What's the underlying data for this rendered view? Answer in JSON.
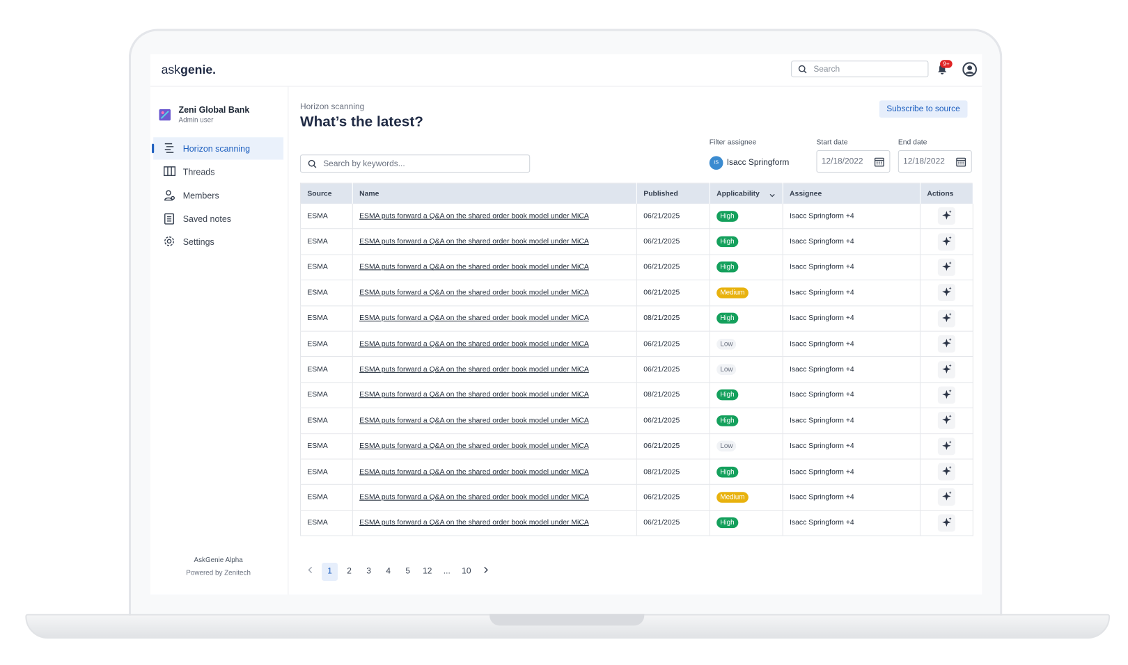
{
  "header": {
    "logo_light": "ask",
    "logo_bold": "genie.",
    "search_placeholder": "Search",
    "notification_badge": "9+"
  },
  "sidebar": {
    "org_name": "Zeni Global Bank",
    "role": "Admin user",
    "nav": [
      "Horizon scanning",
      "Threads",
      "Members",
      "Saved notes",
      "Settings"
    ],
    "footer_title": "AskGenie Alpha",
    "footer_subtitle": "Powered by Zenitech"
  },
  "main": {
    "breadcrumb": "Horizon scanning",
    "title": "What’s the latest?",
    "subscribe_button": "Subscribe to source",
    "keyword_placeholder": "Search by keywords...",
    "filter_assignee_label": "Filter assignee",
    "assignee_initials": "IS",
    "assignee_name": "Isacc Springform",
    "start_date_label": "Start date",
    "start_date": "12/18/2022",
    "end_date_label": "End date",
    "end_date": "12/18/2022"
  },
  "table": {
    "headers": [
      "Source",
      "Name",
      "Published",
      "Applicability",
      "Assignee",
      "Actions"
    ],
    "rows": [
      {
        "source": "ESMA",
        "name": "ESMA puts forward a Q&A on the shared order book model under MiCA",
        "published": "06/21/2025",
        "applicability": {
          "text": "High",
          "fill": "#14a05c",
          "ink": "#ffffff"
        },
        "assignee": "Isacc Springform +4"
      },
      {
        "source": "ESMA",
        "name": "ESMA puts forward a Q&A on the shared order book model under MiCA",
        "published": "06/21/2025",
        "applicability": {
          "text": "High",
          "fill": "#14a05c",
          "ink": "#ffffff"
        },
        "assignee": "Isacc Springform +4"
      },
      {
        "source": "ESMA",
        "name": "ESMA puts forward a Q&A on the shared order book model under MiCA",
        "published": "06/21/2025",
        "applicability": {
          "text": "High",
          "fill": "#14a05c",
          "ink": "#ffffff"
        },
        "assignee": "Isacc Springform +4"
      },
      {
        "source": "ESMA",
        "name": "ESMA puts forward a Q&A on the shared order book model under MiCA",
        "published": "06/21/2025",
        "applicability": {
          "text": "Medium",
          "fill": "#e8b20e",
          "ink": "#ffffff"
        },
        "assignee": "Isacc Springform +4"
      },
      {
        "source": "ESMA",
        "name": "ESMA puts forward a Q&A on the shared order book model under MiCA",
        "published": "08/21/2025",
        "applicability": {
          "text": "High",
          "fill": "#14a05c",
          "ink": "#ffffff"
        },
        "assignee": "Isacc Springform +4"
      },
      {
        "source": "ESMA",
        "name": "ESMA puts forward a Q&A on the shared order book model under MiCA",
        "published": "06/21/2025",
        "applicability": {
          "text": "Low",
          "fill": "#f1f3f6",
          "ink": "#6b7280"
        },
        "assignee": "Isacc Springform +4"
      },
      {
        "source": "ESMA",
        "name": "ESMA puts forward a Q&A on the shared order book model under MiCA",
        "published": "06/21/2025",
        "applicability": {
          "text": "Low",
          "fill": "#f1f3f6",
          "ink": "#6b7280"
        },
        "assignee": "Isacc Springform +4"
      },
      {
        "source": "ESMA",
        "name": "ESMA puts forward a Q&A on the shared order book model under MiCA",
        "published": "08/21/2025",
        "applicability": {
          "text": "High",
          "fill": "#14a05c",
          "ink": "#ffffff"
        },
        "assignee": "Isacc Springform +4"
      },
      {
        "source": "ESMA",
        "name": "ESMA puts forward a Q&A on the shared order book model under MiCA",
        "published": "06/21/2025",
        "applicability": {
          "text": "High",
          "fill": "#14a05c",
          "ink": "#ffffff"
        },
        "assignee": "Isacc Springform +4"
      },
      {
        "source": "ESMA",
        "name": "ESMA puts forward a Q&A on the shared order book model under MiCA",
        "published": "06/21/2025",
        "applicability": {
          "text": "Low",
          "fill": "#f1f3f6",
          "ink": "#6b7280"
        },
        "assignee": "Isacc Springform +4"
      },
      {
        "source": "ESMA",
        "name": "ESMA puts forward a Q&A on the shared order book model under MiCA",
        "published": "08/21/2025",
        "applicability": {
          "text": "High",
          "fill": "#14a05c",
          "ink": "#ffffff"
        },
        "assignee": "Isacc Springform +4"
      },
      {
        "source": "ESMA",
        "name": "ESMA puts forward a Q&A on the shared order book model under MiCA",
        "published": "06/21/2025",
        "applicability": {
          "text": "Medium",
          "fill": "#e8b20e",
          "ink": "#ffffff"
        },
        "assignee": "Isacc Springform +4"
      },
      {
        "source": "ESMA",
        "name": "ESMA puts forward a Q&A on the shared order book model under MiCA",
        "published": "06/21/2025",
        "applicability": {
          "text": "High",
          "fill": "#14a05c",
          "ink": "#ffffff"
        },
        "assignee": "Isacc Springform +4"
      }
    ]
  },
  "pagination": {
    "pages": [
      "1",
      "2",
      "3",
      "4",
      "5",
      "12",
      "...",
      "10"
    ],
    "current": 0
  }
}
